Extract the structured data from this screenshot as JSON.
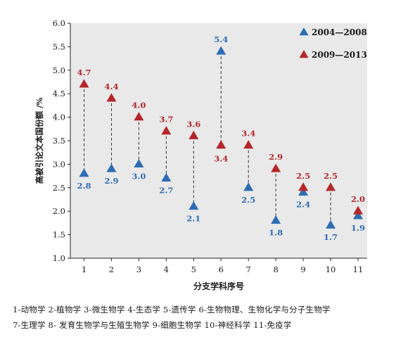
{
  "chart_data": {
    "type": "scatter",
    "title": "",
    "xlabel": "分支学科序号",
    "ylabel": "高被引论文本国份额 /%",
    "x": [
      1,
      2,
      3,
      4,
      5,
      6,
      7,
      8,
      9,
      10,
      11
    ],
    "ylim": [
      1.0,
      6.0
    ],
    "yticks": [
      "1.0",
      "1.5",
      "2.0",
      "2.5",
      "3.0",
      "3.5",
      "4.0",
      "4.5",
      "5.0",
      "5.5",
      "6.0"
    ],
    "grid": false,
    "legend_position": "top-right",
    "series": [
      {
        "name": "2004—2008",
        "color": "#2e6db4",
        "marker": "triangle",
        "values": [
          2.8,
          2.9,
          3.0,
          2.7,
          2.1,
          5.4,
          2.5,
          1.8,
          2.4,
          1.7,
          1.9
        ],
        "labels": [
          "2.8",
          "2.9",
          "3.0",
          "2.7",
          "2.1",
          "5.4",
          "2.5",
          "1.8",
          "2.4",
          "1.7",
          "1.9"
        ]
      },
      {
        "name": "2009—2013",
        "color": "#b3262a",
        "marker": "triangle",
        "values": [
          4.7,
          4.4,
          4.0,
          3.7,
          3.6,
          3.4,
          3.4,
          2.9,
          2.5,
          2.5,
          2.0
        ],
        "labels": [
          "4.7",
          "4.4",
          "4.0",
          "3.7",
          "3.6",
          "3.4",
          "3.4",
          "2.9",
          "2.5",
          "2.5",
          "2.0"
        ]
      }
    ]
  },
  "caption": {
    "line1": "1-动物学    2-植物学    3-微生物学    4-生态学    5-遗传学    6-生物物理、生物化学与分子生物学",
    "line2": "7-生理学   8- 发育生物学与生殖生物学    9-细胞生物学    10-神经科学    11-免疫学"
  }
}
